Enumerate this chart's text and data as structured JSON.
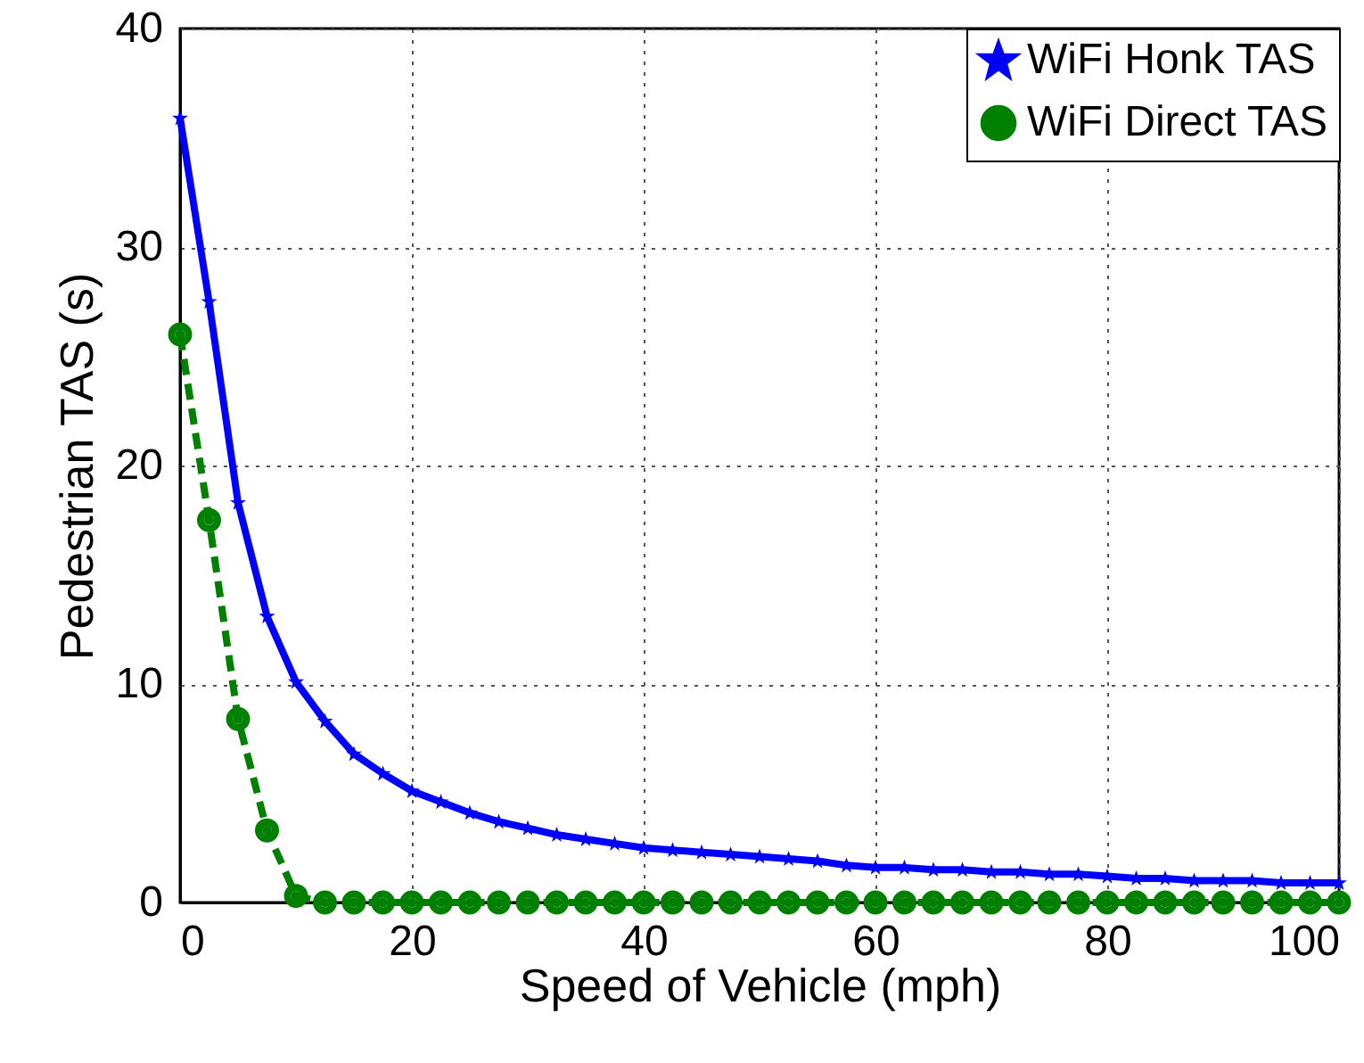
{
  "chart_data": {
    "type": "line",
    "xlabel": "Speed of Vehicle (mph)",
    "ylabel": "Pedestrian TAS (s)",
    "x": [
      0,
      2.5,
      5,
      7.5,
      10,
      12.5,
      15,
      17.5,
      20,
      22.5,
      25,
      27.5,
      30,
      32.5,
      35,
      37.5,
      40,
      42.5,
      45,
      47.5,
      50,
      52.5,
      55,
      57.5,
      60,
      62.5,
      65,
      67.5,
      70,
      72.5,
      75,
      77.5,
      80,
      82.5,
      85,
      87.5,
      90,
      92.5,
      95,
      97.5,
      100
    ],
    "series": [
      {
        "name": "WiFi Honk TAS",
        "color": "#0000ff",
        "marker": "star",
        "line_style": "solid",
        "values": [
          35.9,
          27.5,
          18.3,
          13.1,
          10.1,
          8.3,
          6.8,
          5.9,
          5.1,
          4.6,
          4.1,
          3.7,
          3.4,
          3.1,
          2.9,
          2.7,
          2.5,
          2.4,
          2.3,
          2.2,
          2.1,
          2.0,
          1.9,
          1.7,
          1.6,
          1.6,
          1.5,
          1.5,
          1.4,
          1.4,
          1.3,
          1.3,
          1.2,
          1.1,
          1.1,
          1.0,
          1.0,
          1.0,
          0.9,
          0.9,
          0.9
        ]
      },
      {
        "name": "WiFi Direct TAS",
        "color": "#008000",
        "marker": "circle",
        "line_style": "dashed",
        "values": [
          26.0,
          17.5,
          8.4,
          3.3,
          0.3,
          0,
          0,
          0,
          0,
          0,
          0,
          0,
          0,
          0,
          0,
          0,
          0,
          0,
          0,
          0,
          0,
          0,
          0,
          0,
          0,
          0,
          0,
          0,
          0,
          0,
          0,
          0,
          0,
          0,
          0,
          0,
          0,
          0,
          0,
          0,
          0
        ]
      }
    ],
    "xlim": [
      0,
      100
    ],
    "xticks": [
      0,
      20,
      40,
      60,
      80,
      100
    ],
    "ylim": [
      0,
      40
    ],
    "yticks": [
      0,
      10,
      20,
      30,
      40
    ],
    "grid": true,
    "legend": "top right"
  }
}
